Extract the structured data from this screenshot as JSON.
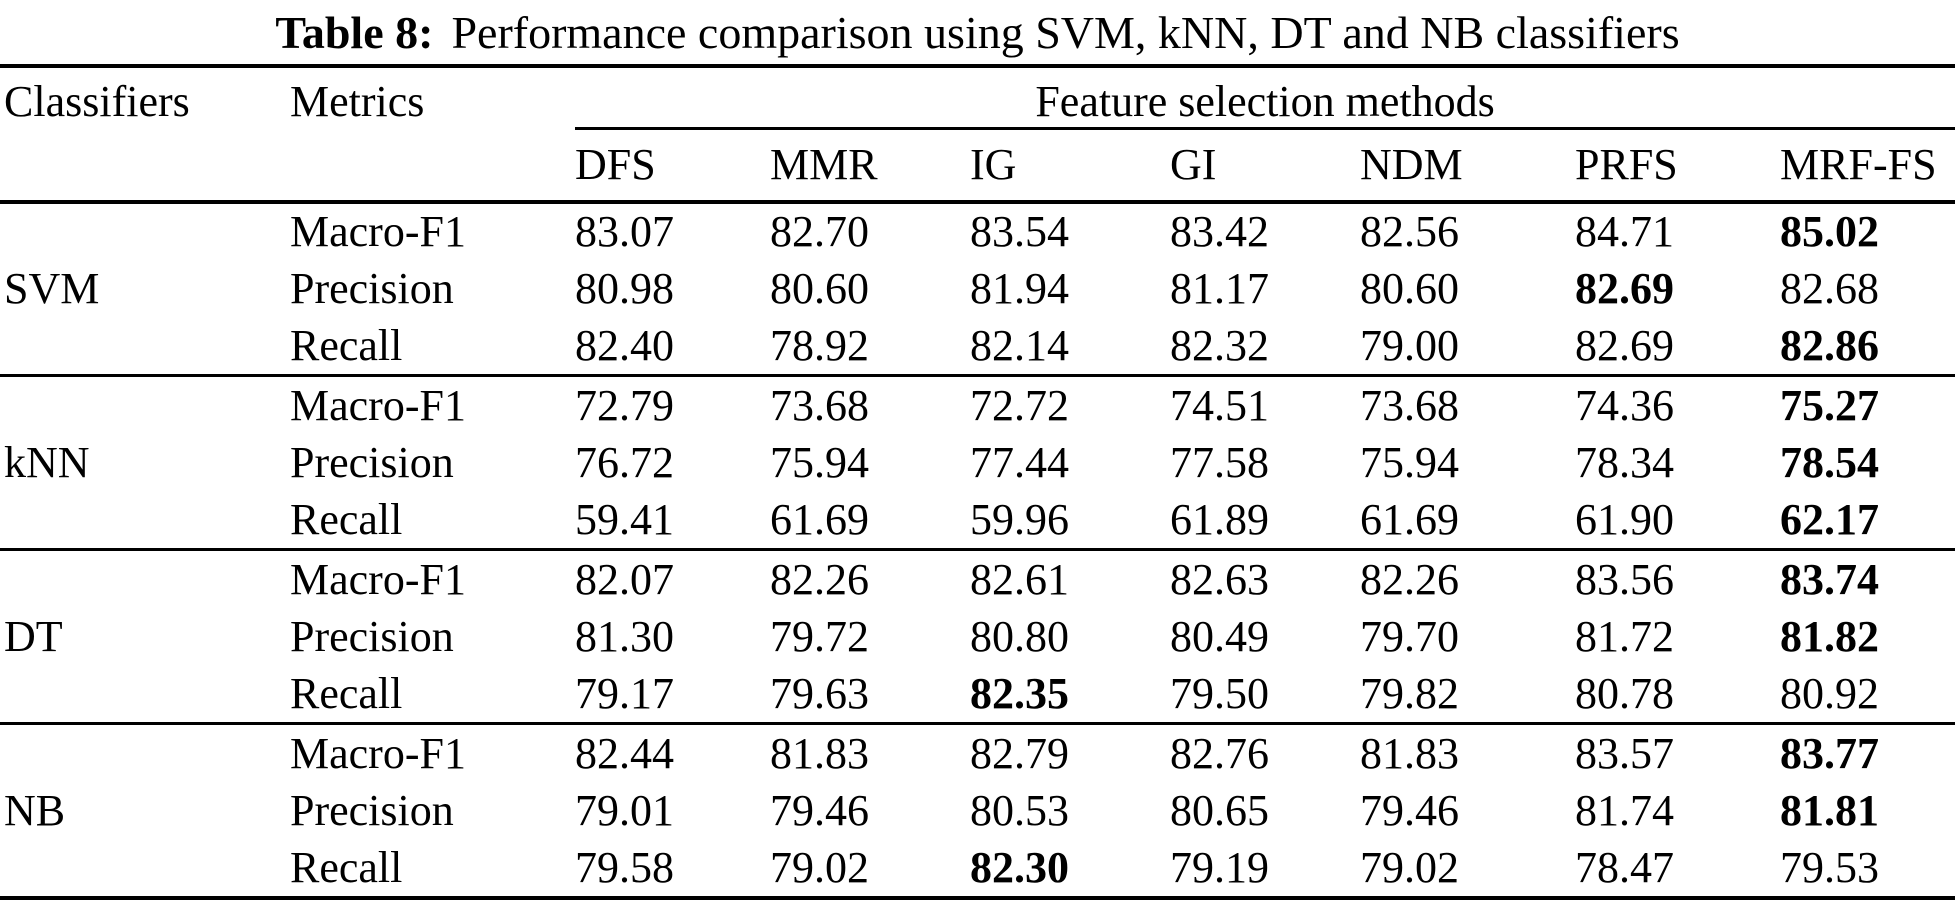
{
  "caption": {
    "label": "Table 8:",
    "text": "Performance comparison using SVM, kNN, DT and NB classifiers"
  },
  "table": {
    "header": {
      "classifiers": "Classifiers",
      "metrics": "Metrics",
      "methods_group": "Feature selection methods"
    },
    "methods": [
      "DFS",
      "MMR",
      "IG",
      "GI",
      "NDM",
      "PRFS",
      "MRF-FS"
    ],
    "groups": [
      {
        "classifier": "SVM",
        "rows": [
          {
            "metric": "Macro-F1",
            "values": [
              "83.07",
              "82.70",
              "83.54",
              "83.42",
              "82.56",
              "84.71",
              "85.02"
            ],
            "bold": [
              6
            ]
          },
          {
            "metric": "Precision",
            "values": [
              "80.98",
              "80.60",
              "81.94",
              "81.17",
              "80.60",
              "82.69",
              "82.68"
            ],
            "bold": [
              5
            ]
          },
          {
            "metric": "Recall",
            "values": [
              "82.40",
              "78.92",
              "82.14",
              "82.32",
              "79.00",
              "82.69",
              "82.86"
            ],
            "bold": [
              6
            ]
          }
        ]
      },
      {
        "classifier": "kNN",
        "rows": [
          {
            "metric": "Macro-F1",
            "values": [
              "72.79",
              "73.68",
              "72.72",
              "74.51",
              "73.68",
              "74.36",
              "75.27"
            ],
            "bold": [
              6
            ]
          },
          {
            "metric": "Precision",
            "values": [
              "76.72",
              "75.94",
              "77.44",
              "77.58",
              "75.94",
              "78.34",
              "78.54"
            ],
            "bold": [
              6
            ]
          },
          {
            "metric": "Recall",
            "values": [
              "59.41",
              "61.69",
              "59.96",
              "61.89",
              "61.69",
              "61.90",
              "62.17"
            ],
            "bold": [
              6
            ]
          }
        ]
      },
      {
        "classifier": "DT",
        "rows": [
          {
            "metric": "Macro-F1",
            "values": [
              "82.07",
              "82.26",
              "82.61",
              "82.63",
              "82.26",
              "83.56",
              "83.74"
            ],
            "bold": [
              6
            ]
          },
          {
            "metric": "Precision",
            "values": [
              "81.30",
              "79.72",
              "80.80",
              "80.49",
              "79.70",
              "81.72",
              "81.82"
            ],
            "bold": [
              6
            ]
          },
          {
            "metric": "Recall",
            "values": [
              "79.17",
              "79.63",
              "82.35",
              "79.50",
              "79.82",
              "80.78",
              "80.92"
            ],
            "bold": [
              2
            ]
          }
        ]
      },
      {
        "classifier": "NB",
        "rows": [
          {
            "metric": "Macro-F1",
            "values": [
              "82.44",
              "81.83",
              "82.79",
              "82.76",
              "81.83",
              "83.57",
              "83.77"
            ],
            "bold": [
              6
            ]
          },
          {
            "metric": "Precision",
            "values": [
              "79.01",
              "79.46",
              "80.53",
              "80.65",
              "79.46",
              "81.74",
              "81.81"
            ],
            "bold": [
              6
            ]
          },
          {
            "metric": "Recall",
            "values": [
              "79.58",
              "79.02",
              "82.30",
              "79.19",
              "79.02",
              "78.47",
              "79.53"
            ],
            "bold": [
              2
            ]
          }
        ]
      }
    ]
  },
  "chart_data": {
    "type": "table",
    "title": "Table 8: Performance comparison using SVM, kNN, DT and NB classifiers",
    "columns": [
      "Classifiers",
      "Metrics",
      "DFS",
      "MMR",
      "IG",
      "GI",
      "NDM",
      "PRFS",
      "MRF-FS"
    ],
    "rows": [
      [
        "SVM",
        "Macro-F1",
        "83.07",
        "82.70",
        "83.54",
        "83.42",
        "82.56",
        "84.71",
        "85.02"
      ],
      [
        "SVM",
        "Precision",
        "80.98",
        "80.60",
        "81.94",
        "81.17",
        "80.60",
        "82.69",
        "82.68"
      ],
      [
        "SVM",
        "Recall",
        "82.40",
        "78.92",
        "82.14",
        "82.32",
        "79.00",
        "82.69",
        "82.86"
      ],
      [
        "kNN",
        "Macro-F1",
        "72.79",
        "73.68",
        "72.72",
        "74.51",
        "73.68",
        "74.36",
        "75.27"
      ],
      [
        "kNN",
        "Precision",
        "76.72",
        "75.94",
        "77.44",
        "77.58",
        "75.94",
        "78.34",
        "78.54"
      ],
      [
        "kNN",
        "Recall",
        "59.41",
        "61.69",
        "59.96",
        "61.89",
        "61.69",
        "61.90",
        "62.17"
      ],
      [
        "DT",
        "Macro-F1",
        "82.07",
        "82.26",
        "82.61",
        "82.63",
        "82.26",
        "83.56",
        "83.74"
      ],
      [
        "DT",
        "Precision",
        "81.30",
        "79.72",
        "80.80",
        "80.49",
        "79.70",
        "81.72",
        "81.82"
      ],
      [
        "DT",
        "Recall",
        "79.17",
        "79.63",
        "82.35",
        "79.50",
        "79.82",
        "80.78",
        "80.92"
      ],
      [
        "NB",
        "Macro-F1",
        "82.44",
        "81.83",
        "82.79",
        "82.76",
        "81.83",
        "83.57",
        "83.77"
      ],
      [
        "NB",
        "Precision",
        "79.01",
        "79.46",
        "80.53",
        "80.65",
        "79.46",
        "81.74",
        "81.81"
      ],
      [
        "NB",
        "Recall",
        "79.58",
        "79.02",
        "82.30",
        "79.19",
        "79.02",
        "78.47",
        "79.53"
      ]
    ]
  }
}
